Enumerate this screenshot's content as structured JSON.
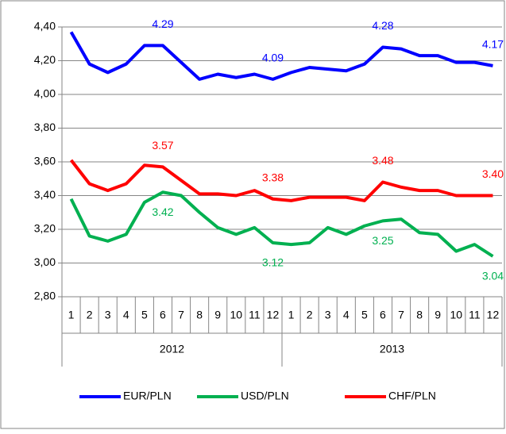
{
  "chart_data": {
    "type": "line",
    "categories": [
      "1",
      "2",
      "3",
      "4",
      "5",
      "6",
      "7",
      "8",
      "9",
      "10",
      "11",
      "12",
      "1",
      "2",
      "3",
      "4",
      "5",
      "6",
      "7",
      "8",
      "9",
      "10",
      "11",
      "12"
    ],
    "x_groups": [
      "2012",
      "2013"
    ],
    "ylim": [
      2.8,
      4.4
    ],
    "yticks": [
      {
        "value": 2.8,
        "label": "2,80"
      },
      {
        "value": 3.0,
        "label": "3,00"
      },
      {
        "value": 3.2,
        "label": "3,20"
      },
      {
        "value": 3.4,
        "label": "3,40"
      },
      {
        "value": 3.6,
        "label": "3,60"
      },
      {
        "value": 3.8,
        "label": "3,80"
      },
      {
        "value": 4.0,
        "label": "4,00"
      },
      {
        "value": 4.2,
        "label": "4,20"
      },
      {
        "value": 4.4,
        "label": "4,40"
      }
    ],
    "grid": true,
    "legend": "bottom",
    "series": [
      {
        "name": "EUR/PLN",
        "color": "#0000ff",
        "values": [
          4.37,
          4.18,
          4.13,
          4.18,
          4.29,
          4.29,
          4.19,
          4.09,
          4.12,
          4.1,
          4.12,
          4.09,
          4.13,
          4.16,
          4.15,
          4.14,
          4.18,
          4.28,
          4.27,
          4.23,
          4.23,
          4.19,
          4.19,
          4.17
        ],
        "value_labels": [
          null,
          null,
          null,
          null,
          null,
          "4.29",
          null,
          null,
          null,
          null,
          null,
          "4.09",
          null,
          null,
          null,
          null,
          null,
          "4.28",
          null,
          null,
          null,
          null,
          null,
          "4.17"
        ]
      },
      {
        "name": "USD/PLN",
        "color": "#00b050",
        "values": [
          3.38,
          3.16,
          3.13,
          3.17,
          3.36,
          3.42,
          3.4,
          3.3,
          3.21,
          3.17,
          3.21,
          3.12,
          3.11,
          3.12,
          3.21,
          3.17,
          3.22,
          3.25,
          3.26,
          3.18,
          3.17,
          3.07,
          3.11,
          3.04
        ],
        "value_labels": [
          null,
          null,
          null,
          null,
          null,
          "3.42",
          null,
          null,
          null,
          null,
          null,
          "3.12",
          null,
          null,
          null,
          null,
          null,
          "3.25",
          null,
          null,
          null,
          null,
          null,
          "3.04"
        ]
      },
      {
        "name": "CHF/PLN",
        "color": "#ff0000",
        "values": [
          3.61,
          3.47,
          3.43,
          3.47,
          3.58,
          3.57,
          3.49,
          3.41,
          3.41,
          3.4,
          3.43,
          3.38,
          3.37,
          3.39,
          3.39,
          3.39,
          3.37,
          3.48,
          3.45,
          3.43,
          3.43,
          3.4,
          3.4,
          3.4
        ],
        "value_labels": [
          null,
          null,
          null,
          null,
          null,
          "3.57",
          null,
          null,
          null,
          null,
          null,
          "3.38",
          null,
          null,
          null,
          null,
          null,
          "3.48",
          null,
          null,
          null,
          null,
          null,
          "3.40"
        ]
      }
    ]
  }
}
